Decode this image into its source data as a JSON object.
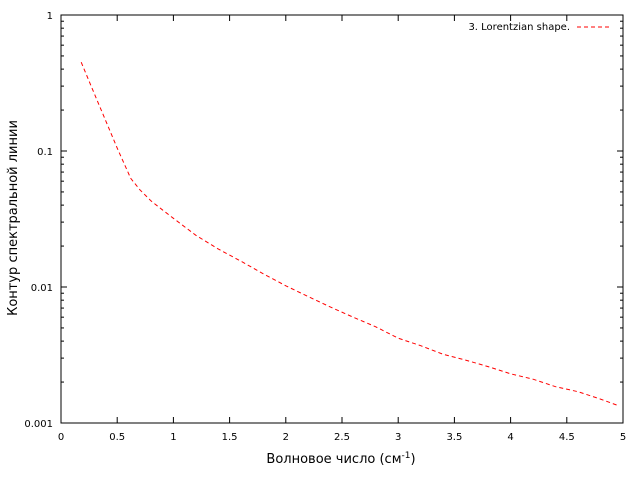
{
  "chart_data": {
    "type": "line",
    "title": "",
    "xlabel": "Волновое число (см",
    "xlabel_sup": "-1",
    "xlabel_end": ")",
    "ylabel": "Контур спектральной линии",
    "xlim": [
      0,
      5
    ],
    "ylim": [
      0.001,
      1
    ],
    "yscale": "log",
    "grid": false,
    "legend_position": "top-right",
    "x_ticks": [
      0,
      0.5,
      1,
      1.5,
      2,
      2.5,
      3,
      3.5,
      4,
      4.5,
      5
    ],
    "x_tick_labels": [
      "0",
      "0.5",
      "1",
      "1.5",
      "2",
      "2.5",
      "3",
      "3.5",
      "4",
      "4.5",
      "5"
    ],
    "y_ticks": [
      0.001,
      0.01,
      0.1,
      1
    ],
    "y_tick_labels": [
      "0.001",
      "0.01",
      "0.1",
      "1"
    ],
    "series": [
      {
        "name": "3. Lorentzian shape.",
        "color": "#ff0000",
        "style": "dashed",
        "x": [
          0.18,
          0.3,
          0.4,
          0.5,
          0.62,
          0.7,
          0.8,
          0.9,
          1.0,
          1.2,
          1.4,
          1.6,
          1.8,
          2.0,
          2.2,
          2.4,
          2.6,
          2.8,
          3.0,
          3.2,
          3.4,
          3.6,
          3.8,
          4.0,
          4.2,
          4.4,
          4.6,
          4.8,
          4.95
        ],
        "y": [
          0.45,
          0.26,
          0.165,
          0.105,
          0.063,
          0.052,
          0.043,
          0.037,
          0.032,
          0.024,
          0.019,
          0.0155,
          0.0125,
          0.0102,
          0.0085,
          0.0071,
          0.006,
          0.0051,
          0.0042,
          0.0037,
          0.0032,
          0.0029,
          0.0026,
          0.0023,
          0.0021,
          0.00185,
          0.0017,
          0.0015,
          0.00135
        ]
      }
    ]
  }
}
